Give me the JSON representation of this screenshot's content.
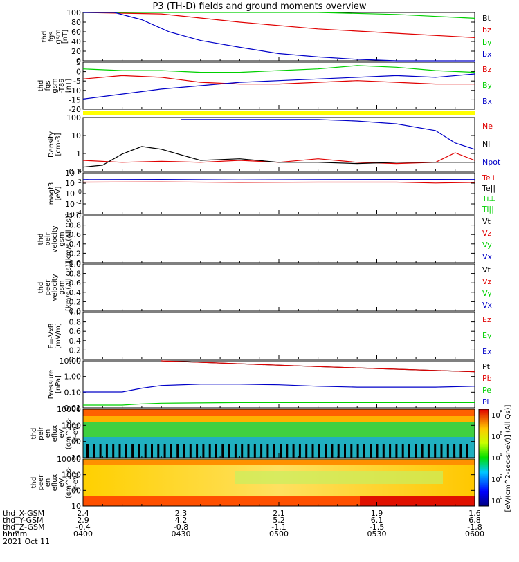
{
  "title": "P3 (TH-D) fields and ground moments overview",
  "date_label": "2021 Oct 11",
  "ephemeris": {
    "row_labels": [
      "thd_X-GSM",
      "thd_Y-GSM",
      "thd_Z-GSM",
      "hhmm"
    ],
    "columns": [
      {
        "x": "2.4",
        "y": "2.9",
        "z": "-0.4",
        "time": "0400"
      },
      {
        "x": "2.3",
        "y": "4.2",
        "z": "-0.8",
        "time": "0430"
      },
      {
        "x": "2.1",
        "y": "5.2",
        "z": "-1.1",
        "time": "0500"
      },
      {
        "x": "1.9",
        "y": "6.1",
        "z": "-1.5",
        "time": "0530"
      },
      {
        "x": "1.6",
        "y": "6.8",
        "z": "-1.8",
        "time": "0600"
      }
    ]
  },
  "colors": {
    "black": "#000000",
    "red": "#e00000",
    "green": "#00d000",
    "blue": "#0000c8",
    "yellow": "#ffff00"
  },
  "colorbar": {
    "ticks": [
      "10^8",
      "10^6",
      "10^4",
      "10^2",
      "10^0"
    ],
    "label": "[eV/(cm^2-sec-sr-eV)] (All Qs)]"
  },
  "chart_data": [
    {
      "type": "line",
      "name": "fgs_gsm_mag",
      "ylabel": [
        "thd",
        "fgs",
        "gsm",
        "[nT]"
      ],
      "yticks": [
        "100",
        "80",
        "60",
        "40",
        "20",
        "0"
      ],
      "ylim": [
        0,
        100
      ],
      "legend": [
        {
          "name": "Bt",
          "color": "black"
        },
        {
          "name": "bz",
          "color": "red"
        },
        {
          "name": "by",
          "color": "green"
        },
        {
          "name": "bx",
          "color": "blue"
        }
      ],
      "series": [
        {
          "name": "bz",
          "color": "red",
          "x": [
            0,
            0.2,
            0.4,
            0.6,
            0.8,
            1.0
          ],
          "y": [
            100,
            97,
            80,
            66,
            57,
            48
          ]
        },
        {
          "name": "by",
          "color": "green",
          "x": [
            0,
            0.2,
            0.4,
            0.6,
            0.8,
            1.0
          ],
          "y": [
            100,
            100,
            100,
            100,
            96,
            88
          ]
        },
        {
          "name": "bx",
          "color": "blue",
          "x": [
            0,
            0.02,
            0.08,
            0.15,
            0.22,
            0.3,
            0.4,
            0.5,
            0.6,
            0.7,
            0.8,
            0.9,
            1.0
          ],
          "y": [
            100,
            100,
            102,
            85,
            60,
            42,
            28,
            15,
            8,
            3,
            0,
            -1,
            -2
          ]
        }
      ]
    },
    {
      "type": "line",
      "name": "fgs_gsm_dev",
      "ylabel": [
        "thd",
        "fgs",
        "gsm",
        "-T89",
        "[nT]"
      ],
      "yticks": [
        "5",
        "0",
        "-5",
        "-10",
        "-15",
        "-20"
      ],
      "ylim": [
        -22,
        6
      ],
      "legend": [
        {
          "name": "Bz",
          "color": "red"
        },
        {
          "name": "By",
          "color": "green"
        },
        {
          "name": "Bx",
          "color": "blue"
        }
      ],
      "series": [
        {
          "name": "Bz",
          "color": "red",
          "x": [
            0,
            0.1,
            0.2,
            0.3,
            0.4,
            0.5,
            0.6,
            0.7,
            0.8,
            0.9,
            1.0
          ],
          "y": [
            -4,
            -2,
            -3,
            -6,
            -7,
            -7,
            -6,
            -5,
            -6,
            -7,
            -7
          ]
        },
        {
          "name": "By",
          "color": "green",
          "x": [
            0,
            0.1,
            0.2,
            0.3,
            0.4,
            0.5,
            0.6,
            0.7,
            0.8,
            0.9,
            1.0
          ],
          "y": [
            2,
            1,
            1,
            0,
            0,
            1,
            2,
            4,
            3,
            1,
            0
          ]
        },
        {
          "name": "Bx",
          "color": "blue",
          "x": [
            0,
            0.1,
            0.2,
            0.3,
            0.4,
            0.5,
            0.6,
            0.7,
            0.8,
            0.9,
            1.0
          ],
          "y": [
            -16,
            -13,
            -10,
            -8,
            -6,
            -5,
            -4,
            -3,
            -2,
            -3,
            -1
          ]
        }
      ]
    },
    {
      "type": "line",
      "name": "density",
      "ylabel": [
        "Density",
        "[cm-3]"
      ],
      "yticks": [
        "100",
        "10",
        "1",
        "0.1"
      ],
      "ylim": [
        0.08,
        200
      ],
      "log": true,
      "legend": [
        {
          "name": "Ne",
          "color": "red"
        },
        {
          "name": "Ni",
          "color": "black"
        },
        {
          "name": "Npot",
          "color": "blue"
        }
      ],
      "series": [
        {
          "name": "Npot",
          "color": "blue",
          "x": [
            0.25,
            0.3,
            0.4,
            0.5,
            0.6,
            0.7,
            0.8,
            0.9,
            0.95,
            1.0
          ],
          "y": [
            150,
            150,
            150,
            150,
            150,
            120,
            80,
            30,
            5,
            2
          ]
        },
        {
          "name": "Ne",
          "color": "red",
          "x": [
            0,
            0.1,
            0.2,
            0.3,
            0.4,
            0.5,
            0.6,
            0.7,
            0.8,
            0.9,
            0.95,
            1.0
          ],
          "y": [
            0.4,
            0.3,
            0.35,
            0.3,
            0.4,
            0.3,
            0.5,
            0.3,
            0.25,
            0.3,
            1.2,
            0.4
          ]
        },
        {
          "name": "Ni",
          "color": "black",
          "x": [
            0,
            0.05,
            0.1,
            0.15,
            0.2,
            0.3,
            0.4,
            0.5,
            0.6,
            0.7,
            0.8,
            0.9,
            1.0
          ],
          "y": [
            0.15,
            0.2,
            1,
            3,
            2,
            0.4,
            0.5,
            0.3,
            0.3,
            0.25,
            0.3,
            0.3,
            0.3
          ]
        }
      ]
    },
    {
      "type": "line",
      "name": "magt3",
      "ylabel": [
        "magt3",
        "[eV]"
      ],
      "yticks": [
        "10^4",
        "10^2",
        "10^0",
        "10^-2",
        "10^-4"
      ],
      "ylim": [
        5e-05,
        100000
      ],
      "log": true,
      "legend": [
        {
          "name": "Te⊥",
          "color": "red"
        },
        {
          "name": "Te||",
          "color": "black"
        },
        {
          "name": "Ti⊥",
          "color": "green"
        },
        {
          "name": "Ti||",
          "color": "green"
        }
      ],
      "series": [
        {
          "name": "Ti",
          "color": "blue",
          "x": [
            0,
            0.2,
            0.4,
            0.6,
            0.8,
            1.0
          ],
          "y": [
            3000,
            3200,
            2600,
            3000,
            3200,
            3100
          ]
        },
        {
          "name": "Te",
          "color": "red",
          "x": [
            0,
            0.2,
            0.4,
            0.6,
            0.8,
            0.9,
            1.0
          ],
          "y": [
            800,
            900,
            700,
            800,
            800,
            500,
            700
          ]
        }
      ]
    },
    {
      "type": "line",
      "name": "peir_velocity",
      "ylabel": [
        "thd",
        "peir",
        "velocity",
        "gsm",
        "[km/s (All Qs)]"
      ],
      "yticks": [
        "1.0",
        "0.8",
        "0.6",
        "0.4",
        "0.2",
        "0.0"
      ],
      "ylim": [
        0,
        1
      ],
      "legend": [
        {
          "name": "Vt",
          "color": "black"
        },
        {
          "name": "Vz",
          "color": "red"
        },
        {
          "name": "Vy",
          "color": "green"
        },
        {
          "name": "Vx",
          "color": "blue"
        }
      ],
      "series": []
    },
    {
      "type": "line",
      "name": "peer_velocity",
      "ylabel": [
        "thd",
        "peer",
        "velocity",
        "gsm",
        "[km/s (All Qs)]"
      ],
      "yticks": [
        "1.0",
        "0.8",
        "0.6",
        "0.4",
        "0.2",
        "0.0"
      ],
      "ylim": [
        0,
        1
      ],
      "legend": [
        {
          "name": "Vt",
          "color": "black"
        },
        {
          "name": "Vz",
          "color": "red"
        },
        {
          "name": "Vy",
          "color": "green"
        },
        {
          "name": "Vx",
          "color": "blue"
        }
      ],
      "series": []
    },
    {
      "type": "line",
      "name": "e_field",
      "ylabel": [
        "E=-VxB",
        "[mV/m]"
      ],
      "yticks": [
        "1.0",
        "0.8",
        "0.6",
        "0.4",
        "0.2",
        "0.0"
      ],
      "ylim": [
        0,
        1
      ],
      "legend": [
        {
          "name": "Ez",
          "color": "red"
        },
        {
          "name": "Ey",
          "color": "green"
        },
        {
          "name": "Ex",
          "color": "blue"
        }
      ],
      "series": []
    },
    {
      "type": "line",
      "name": "pressure",
      "ylabel": [
        "Pressure",
        "[nPa]"
      ],
      "yticks": [
        "10.00",
        "1.00",
        "0.10",
        "0.01"
      ],
      "ylim": [
        0.008,
        30
      ],
      "log": true,
      "legend": [
        {
          "name": "Pt",
          "color": "black"
        },
        {
          "name": "Pb",
          "color": "red"
        },
        {
          "name": "Pe",
          "color": "green"
        },
        {
          "name": "Pi",
          "color": "blue"
        }
      ],
      "series": [
        {
          "name": "Pt",
          "color": "black",
          "x": [
            0.2,
            0.4,
            0.6,
            0.8,
            1.0
          ],
          "y": [
            30,
            18,
            11,
            7,
            4.5
          ]
        },
        {
          "name": "Pb",
          "color": "red",
          "x": [
            0.2,
            0.4,
            0.6,
            0.8,
            1.0
          ],
          "y": [
            30,
            18,
            11,
            7,
            4.5
          ]
        },
        {
          "name": "Pi",
          "color": "blue",
          "x": [
            0,
            0.1,
            0.15,
            0.2,
            0.3,
            0.4,
            0.5,
            0.6,
            0.7,
            0.8,
            0.9,
            1.0
          ],
          "y": [
            0.13,
            0.13,
            0.25,
            0.4,
            0.5,
            0.5,
            0.45,
            0.35,
            0.3,
            0.3,
            0.3,
            0.35
          ]
        },
        {
          "name": "Pe",
          "color": "green",
          "x": [
            0,
            0.1,
            0.15,
            0.2,
            0.4,
            0.6,
            0.8,
            1.0
          ],
          "y": [
            0.013,
            0.013,
            0.016,
            0.018,
            0.02,
            0.02,
            0.02,
            0.02
          ]
        }
      ]
    },
    {
      "type": "heatmap",
      "name": "peir_eflux",
      "ylabel": [
        "thd",
        "peir",
        "en",
        "eflux",
        "eV",
        "(cm^2-s-",
        "sr-eV)"
      ],
      "yticks": [
        "10000",
        "1000",
        "100",
        "10"
      ],
      "ylim": [
        6,
        20000
      ],
      "log": true
    },
    {
      "type": "heatmap",
      "name": "peer_eflux",
      "ylabel": [
        "thd",
        "peer",
        "en",
        "eflux",
        "eV",
        "(cm^2-s-",
        "sr-eV)"
      ],
      "yticks": [
        "10000",
        "1000",
        "100",
        "10"
      ],
      "ylim": [
        6,
        20000
      ],
      "log": true
    }
  ]
}
